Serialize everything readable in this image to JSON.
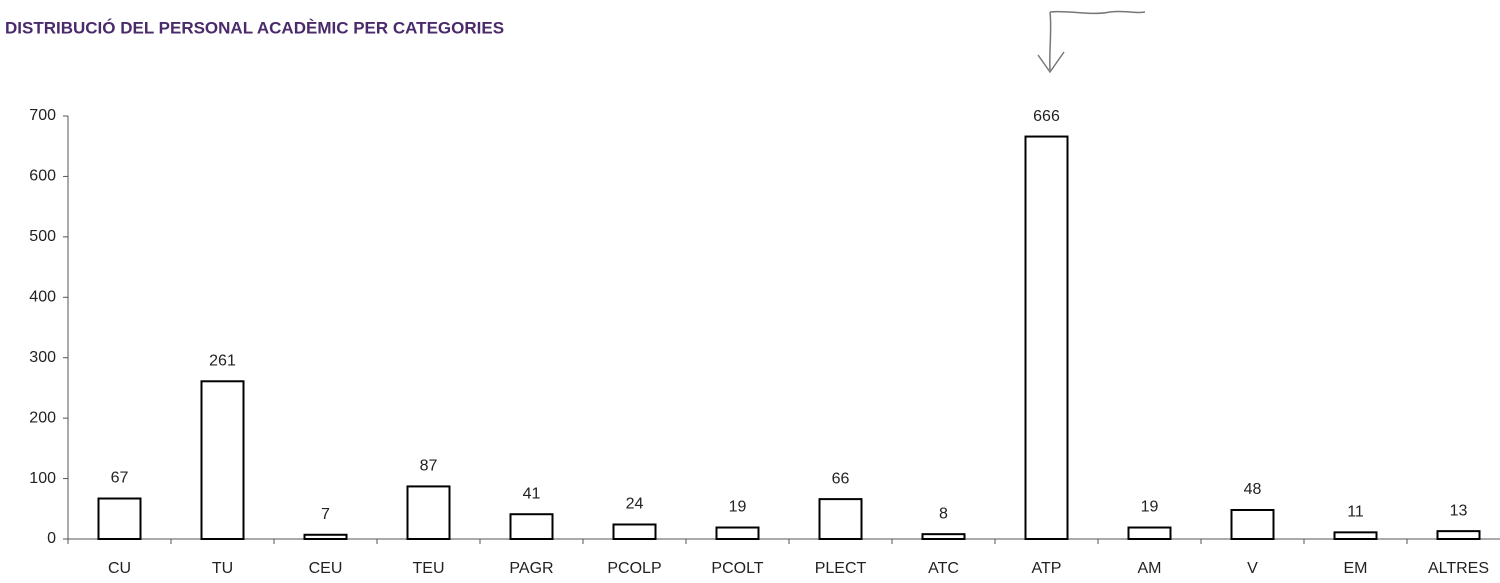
{
  "chart_data": {
    "type": "bar",
    "title": "DISTRIBUCIÓ DEL PERSONAL ACADÈMIC PER CATEGORIES",
    "categories": [
      "CU",
      "TU",
      "CEU",
      "TEU",
      "PAGR",
      "PCOLP",
      "PCOLT",
      "PLECT",
      "ATC",
      "ATP",
      "AM",
      "V",
      "EM",
      "ALTRES"
    ],
    "values": [
      67,
      261,
      7,
      87,
      41,
      24,
      19,
      66,
      8,
      666,
      19,
      48,
      11,
      13
    ],
    "color": "#ffffff",
    "ylim": [
      0,
      700
    ],
    "yticks": [
      0,
      100,
      200,
      300,
      400,
      500,
      600,
      700
    ],
    "grid": false
  }
}
